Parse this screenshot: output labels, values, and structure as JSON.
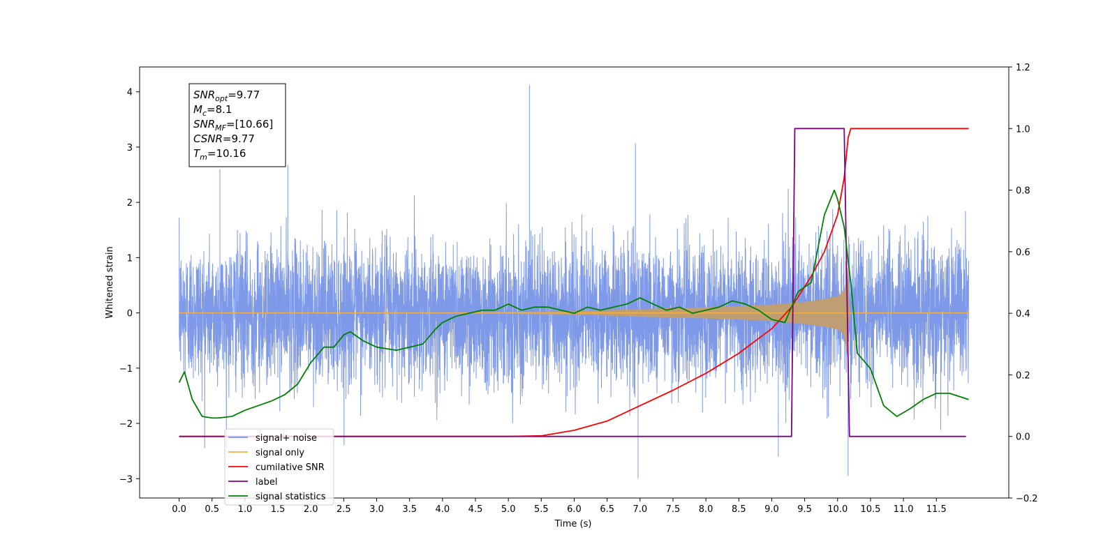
{
  "chart_data": {
    "type": "line",
    "xlabel": "Time (s)",
    "ylabel": "Whitened strain",
    "xlim": [
      -0.6,
      12.6
    ],
    "ylim": [
      -3.35,
      4.45
    ],
    "y2lim": [
      -0.2,
      1.2
    ],
    "grid": false,
    "legend_placement": "lower-left",
    "x_ticks": [
      "0.0",
      "0.5",
      "1.0",
      "1.5",
      "2.0",
      "2.5",
      "3.0",
      "3.5",
      "4.0",
      "4.5",
      "5.0",
      "5.5",
      "6.0",
      "6.5",
      "7.0",
      "7.5",
      "8.0",
      "8.5",
      "9.0",
      "9.5",
      "10.0",
      "10.5",
      "11.0",
      "11.5"
    ],
    "y_ticks": [
      "−3",
      "−2",
      "−1",
      "0",
      "1",
      "2",
      "3",
      "4"
    ],
    "y2_ticks": [
      "−0.2",
      "0.0",
      "0.2",
      "0.4",
      "0.6",
      "0.8",
      "1.0",
      "1.2"
    ],
    "annotation": {
      "lines": [
        {
          "base": "SNR",
          "sub": "opt",
          "rest": "=9.77"
        },
        {
          "base": "M",
          "sub": "c",
          "rest": "=8.1"
        },
        {
          "base": "SNR",
          "sub": "MF",
          "rest": "=[10.66]"
        },
        {
          "base": "CSNR",
          "sub": "",
          "rest": "=9.77"
        },
        {
          "base": "T",
          "sub": "m",
          "rest": "=10.16"
        }
      ]
    },
    "noise_params": {
      "x_start": 0.0,
      "x_end": 11.99,
      "std": 0.62,
      "spikes": [
        {
          "x": 5.32,
          "y": 4.12
        },
        {
          "x": 6.93,
          "y": 3.07
        },
        {
          "x": 0.62,
          "y": 2.6
        },
        {
          "x": 1.65,
          "y": 2.68
        },
        {
          "x": 10.16,
          "y": -2.95
        },
        {
          "x": 6.97,
          "y": -3.0
        },
        {
          "x": 9.1,
          "y": -2.6
        }
      ]
    },
    "series": [
      {
        "name": "signal+ noise",
        "color": "#7794e6",
        "axis": "left"
      },
      {
        "name": "signal only",
        "color": "#f5b041",
        "envelope_color": "#bf9e73",
        "axis": "left",
        "envelope": {
          "x": [
            0.0,
            4.0,
            6.0,
            7.0,
            8.0,
            8.5,
            9.0,
            9.5,
            9.8,
            10.0,
            10.1,
            10.16,
            10.18,
            12.0
          ],
          "amp": [
            0.0,
            0.005,
            0.03,
            0.07,
            0.1,
            0.12,
            0.15,
            0.2,
            0.25,
            0.3,
            0.4,
            0.9,
            0.0,
            0.0
          ]
        }
      },
      {
        "name": "cumilative SNR",
        "color": "#ff0000",
        "axis": "right",
        "x": [
          0.0,
          5.0,
          5.5,
          6.0,
          6.5,
          7.0,
          7.5,
          8.0,
          8.5,
          9.0,
          9.3,
          9.6,
          9.8,
          10.0,
          10.1,
          10.16,
          10.2,
          11.99
        ],
        "y": [
          0.0,
          0.0,
          0.002,
          0.02,
          0.05,
          0.1,
          0.15,
          0.205,
          0.27,
          0.35,
          0.42,
          0.52,
          0.6,
          0.72,
          0.84,
          0.97,
          1.0,
          1.0
        ]
      },
      {
        "name": "label",
        "color": "#800080",
        "axis": "right",
        "x": [
          0.0,
          9.3,
          9.35,
          10.1,
          10.18,
          11.95
        ],
        "y": [
          0.0,
          0.0,
          1.0,
          1.0,
          0.0,
          0.0
        ]
      },
      {
        "name": "signal statistics",
        "color": "#008000",
        "axis": "right",
        "x": [
          0.0,
          0.08,
          0.2,
          0.35,
          0.5,
          0.6,
          0.8,
          1.0,
          1.2,
          1.4,
          1.6,
          1.8,
          2.0,
          2.2,
          2.35,
          2.5,
          2.6,
          2.8,
          3.0,
          3.3,
          3.5,
          3.7,
          3.9,
          4.0,
          4.2,
          4.4,
          4.6,
          4.8,
          5.0,
          5.2,
          5.4,
          5.6,
          5.8,
          6.0,
          6.2,
          6.4,
          6.6,
          6.8,
          7.0,
          7.2,
          7.4,
          7.6,
          7.8,
          8.0,
          8.2,
          8.4,
          8.6,
          8.8,
          9.0,
          9.2,
          9.4,
          9.6,
          9.8,
          9.95,
          10.0,
          10.1,
          10.2,
          10.3,
          10.5,
          10.7,
          10.9,
          11.1,
          11.3,
          11.5,
          11.7,
          11.99
        ],
        "y": [
          0.175,
          0.21,
          0.12,
          0.065,
          0.06,
          0.06,
          0.065,
          0.085,
          0.1,
          0.115,
          0.135,
          0.17,
          0.24,
          0.29,
          0.29,
          0.33,
          0.34,
          0.31,
          0.29,
          0.28,
          0.29,
          0.3,
          0.35,
          0.37,
          0.39,
          0.4,
          0.41,
          0.41,
          0.43,
          0.41,
          0.42,
          0.42,
          0.41,
          0.4,
          0.42,
          0.41,
          0.42,
          0.43,
          0.45,
          0.43,
          0.41,
          0.42,
          0.4,
          0.41,
          0.42,
          0.44,
          0.43,
          0.41,
          0.38,
          0.37,
          0.47,
          0.5,
          0.72,
          0.8,
          0.77,
          0.68,
          0.5,
          0.27,
          0.22,
          0.1,
          0.065,
          0.09,
          0.12,
          0.14,
          0.14,
          0.12
        ]
      }
    ]
  }
}
